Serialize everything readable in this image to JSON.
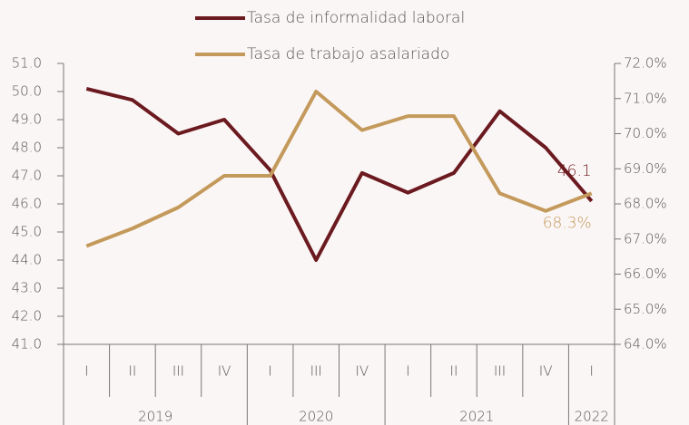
{
  "chart_data": {
    "type": "line",
    "categories": [
      "I",
      "II",
      "III",
      "IV",
      "I",
      "III",
      "IV",
      "I",
      "II",
      "III",
      "IV",
      "I"
    ],
    "groups": [
      {
        "name": "2019",
        "count": 4
      },
      {
        "name": "2020",
        "count": 3
      },
      {
        "name": "2021",
        "count": 4
      },
      {
        "name": "2022",
        "count": 1
      }
    ],
    "series": [
      {
        "name": "Tasa de informalidad laboral",
        "color": "#6b1a1f",
        "values": [
          50.1,
          49.7,
          48.5,
          49.0,
          47.2,
          44.0,
          47.1,
          46.4,
          47.1,
          49.3,
          48.0,
          46.1
        ],
        "value_labels": [
          null,
          null,
          null,
          null,
          null,
          null,
          null,
          null,
          null,
          null,
          null,
          "46.1"
        ]
      },
      {
        "name": "Tasa de trabajo asalariado",
        "color": "#c49a5c",
        "axis": "y2",
        "values": [
          66.8,
          67.3,
          67.9,
          68.8,
          68.8,
          71.2,
          70.1,
          70.5,
          70.5,
          68.3,
          67.8,
          68.3
        ],
        "value_labels": [
          null,
          null,
          null,
          null,
          null,
          null,
          null,
          null,
          null,
          null,
          null,
          "68.3%"
        ]
      }
    ],
    "ylim": [
      41.0,
      51.0
    ],
    "yticks": [
      {
        "value": 41,
        "label": "41.0"
      },
      {
        "value": 42,
        "label": "42.0"
      },
      {
        "value": 43,
        "label": "43.0"
      },
      {
        "value": 44,
        "label": "44.0"
      },
      {
        "value": 45,
        "label": "45.0"
      },
      {
        "value": 46,
        "label": "46.0"
      },
      {
        "value": 47,
        "label": "47.0"
      },
      {
        "value": 48,
        "label": "48.0"
      },
      {
        "value": 49,
        "label": "49.0"
      },
      {
        "value": 50,
        "label": "50.0"
      },
      {
        "value": 51,
        "label": "51.0"
      }
    ],
    "y2lim": [
      64.0,
      72.0
    ],
    "y2ticks": [
      {
        "value": 64,
        "label": "64.0%"
      },
      {
        "value": 65,
        "label": "65.0%"
      },
      {
        "value": 66,
        "label": "66.0%"
      },
      {
        "value": 67,
        "label": "67.0%"
      },
      {
        "value": 68,
        "label": "68.0%"
      },
      {
        "value": 69,
        "label": "69.0%"
      },
      {
        "value": 70,
        "label": "70.0%"
      },
      {
        "value": 71,
        "label": "71.0%"
      },
      {
        "value": 72,
        "label": "72.0%"
      }
    ],
    "legend": "top",
    "grid": false
  }
}
